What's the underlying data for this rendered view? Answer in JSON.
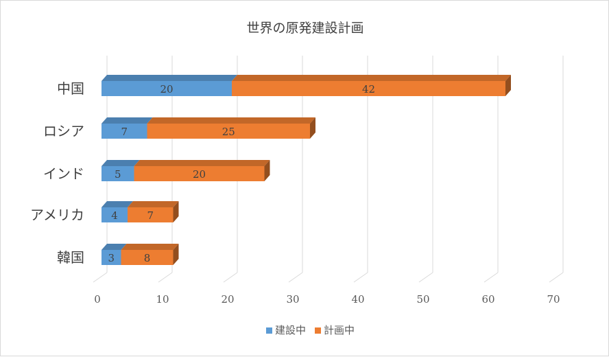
{
  "chart_data": {
    "type": "bar",
    "orientation": "horizontal",
    "stacked": true,
    "style": "3d",
    "title": "世界の原発建設計画",
    "categories": [
      "中国",
      "ロシア",
      "インド",
      "アメリカ",
      "韓国"
    ],
    "series": [
      {
        "name": "建設中",
        "values": [
          20,
          7,
          5,
          4,
          3
        ],
        "color": "#5b9bd5"
      },
      {
        "name": "計画中",
        "values": [
          42,
          25,
          20,
          7,
          8
        ],
        "color": "#ed7d31"
      }
    ],
    "xlim": [
      0,
      70
    ],
    "xticks": [
      0,
      10,
      20,
      30,
      40,
      50,
      60,
      70
    ],
    "xtick_labels": [
      "0",
      "10",
      "20",
      "30",
      "40",
      "50",
      "60",
      "70"
    ],
    "grid": "vertical",
    "legend": "bottom"
  }
}
